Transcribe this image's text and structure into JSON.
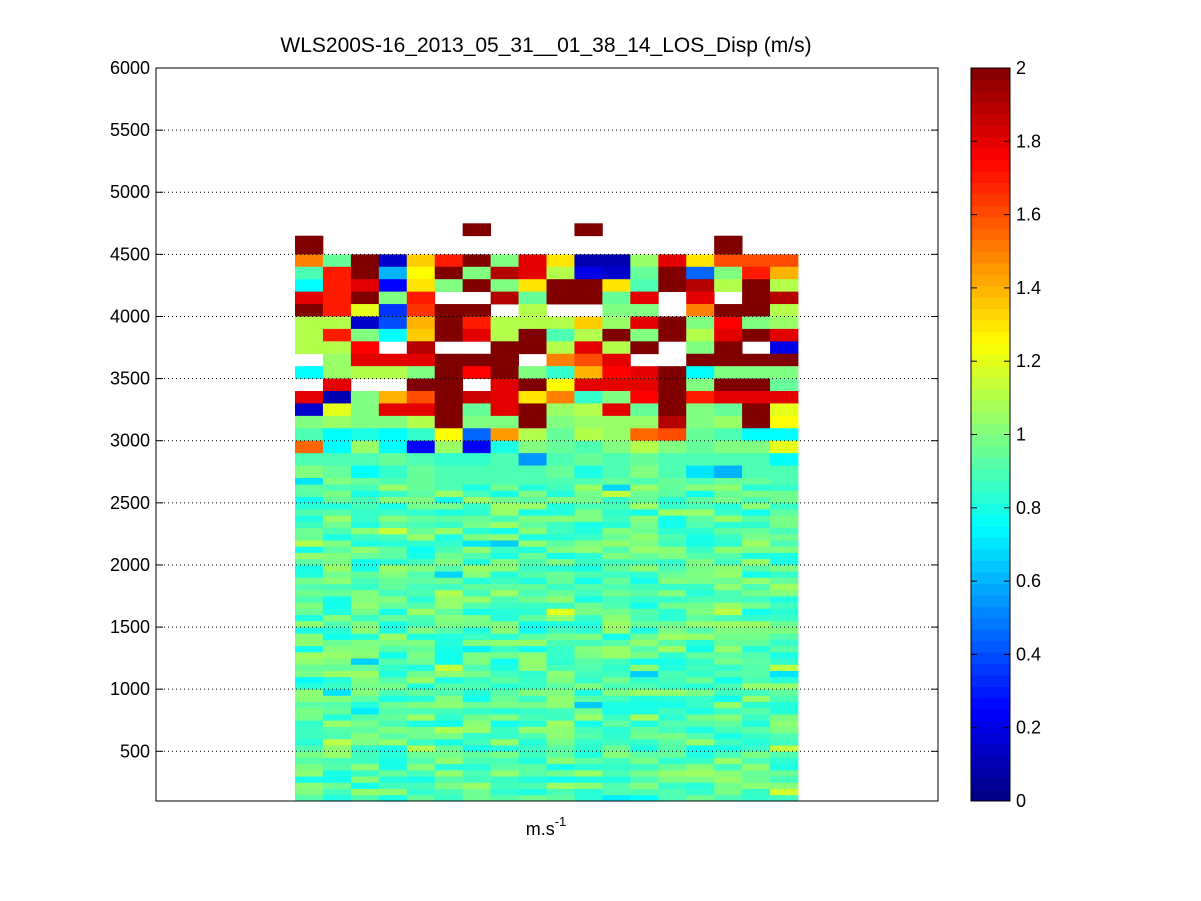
{
  "chart_data": {
    "type": "heatmap",
    "title": "WLS200S-16_2013_05_31__01_38_14_LOS_Disp (m/s)",
    "xlabel": "m.s",
    "xlabel_superscript": "-1",
    "ylabel": "",
    "ylim": [
      100,
      6000
    ],
    "yticks": [
      500,
      1000,
      1500,
      2000,
      2500,
      3000,
      3500,
      4000,
      4500,
      5000,
      5500,
      6000
    ],
    "grid": "horizontal dotted",
    "colormap": "jet",
    "colorbar": {
      "range": [
        0,
        2
      ],
      "ticks": [
        "0",
        "0.2",
        "0.4",
        "0.6",
        "0.8",
        "1",
        "1.2",
        "1.4",
        "1.6",
        "1.8",
        "2"
      ]
    },
    "num_columns": 18,
    "row_bin_m": 50,
    "dense_region": {
      "altitude_range": [
        100,
        2650
      ],
      "description": "values mostly between 0.8 and 1.2 (green/cyan)"
    },
    "sparse_region": {
      "altitude_range": [
        2650,
        4700
      ],
      "rows": [
        {
          "alt_bottom": 4650,
          "values": [
            null,
            null,
            null,
            null,
            null,
            null,
            2,
            null,
            null,
            null,
            2,
            null,
            null,
            null,
            null,
            null,
            null,
            null
          ]
        },
        {
          "alt_bottom": 4500,
          "values": [
            2,
            null,
            null,
            null,
            null,
            null,
            null,
            null,
            null,
            null,
            null,
            null,
            null,
            null,
            null,
            2,
            null,
            null
          ]
        },
        {
          "alt_bottom": 4400,
          "values": [
            1.5,
            0.95,
            2,
            0.15,
            1.35,
            1.7,
            2,
            1.0,
            1.8,
            1.3,
            0.1,
            0.1,
            1.05,
            1.8,
            1.3,
            1.6,
            1.6,
            1.6
          ]
        },
        {
          "alt_bottom": 4300,
          "values": [
            0.9,
            1.7,
            2,
            0.6,
            1.25,
            2,
            1.0,
            1.9,
            1.8,
            1.1,
            0.2,
            0.15,
            0.95,
            2,
            0.45,
            1.0,
            1.7,
            1.4
          ]
        },
        {
          "alt_bottom": 4200,
          "values": [
            0.75,
            1.7,
            1.8,
            0.25,
            1.3,
            1.0,
            2,
            1.0,
            1.3,
            2,
            2,
            1.3,
            0.9,
            2,
            1.9,
            1.1,
            2,
            1.1
          ]
        },
        {
          "alt_bottom": 4100,
          "values": [
            1.8,
            1.7,
            2,
            1.0,
            1.7,
            null,
            null,
            1.9,
            0.95,
            2,
            2,
            0.95,
            1.8,
            null,
            1.8,
            null,
            2,
            1.9
          ]
        },
        {
          "alt_bottom": 4000,
          "values": [
            2,
            1.7,
            1.2,
            0.35,
            1.65,
            2,
            2,
            null,
            1.1,
            null,
            null,
            1.0,
            1.0,
            null,
            1.5,
            2,
            2,
            1.1
          ]
        },
        {
          "alt_bottom": 3900,
          "values": [
            1.1,
            1.1,
            0.15,
            0.4,
            1.4,
            2,
            1.7,
            1.1,
            1.1,
            1.1,
            1.35,
            1.05,
            1.8,
            2,
            1.0,
            1.75,
            1.0,
            1.05
          ]
        },
        {
          "alt_bottom": 3800,
          "values": [
            1.1,
            1.7,
            1.0,
            0.75,
            1.35,
            2,
            1.8,
            1.1,
            2,
            0.9,
            1.1,
            2,
            1.0,
            2,
            1.1,
            1.8,
            2,
            1.8
          ]
        },
        {
          "alt_bottom": 3700,
          "values": [
            1.1,
            1.1,
            1.75,
            null,
            1.9,
            null,
            null,
            2,
            2,
            1.1,
            1.8,
            1.1,
            2,
            null,
            1.0,
            2,
            null,
            0.2
          ]
        },
        {
          "alt_bottom": 3600,
          "values": [
            null,
            1.05,
            1.8,
            1.8,
            1.8,
            2,
            2,
            2,
            null,
            1.5,
            1.6,
            1.8,
            null,
            null,
            2,
            2,
            2,
            2
          ]
        },
        {
          "alt_bottom": 3500,
          "values": [
            0.75,
            1.05,
            1.1,
            1.1,
            1.0,
            2,
            1.75,
            2,
            1.0,
            0.85,
            1.4,
            1.75,
            1.8,
            2,
            0.75,
            1.0,
            1.0,
            1.0
          ]
        },
        {
          "alt_bottom": 3400,
          "values": [
            null,
            1.8,
            null,
            null,
            2,
            2,
            null,
            1.8,
            2,
            1.25,
            1.8,
            1.8,
            1.8,
            2,
            1.0,
            2,
            2,
            0.95
          ]
        },
        {
          "alt_bottom": 3300,
          "values": [
            1.8,
            0.1,
            1.0,
            1.4,
            1.6,
            2,
            1.85,
            1.8,
            1.3,
            1.5,
            0.85,
            1.0,
            1.75,
            2,
            1.7,
            1.8,
            1.8,
            1.8
          ]
        },
        {
          "alt_bottom": 3200,
          "values": [
            0.15,
            1.2,
            1.0,
            1.8,
            1.8,
            2,
            0.95,
            1.8,
            2,
            1.05,
            1.1,
            1.8,
            0.95,
            2,
            1.0,
            0.95,
            2,
            1.2
          ]
        },
        {
          "alt_bottom": 3100,
          "values": [
            1.0,
            1.05,
            1.0,
            1.0,
            1.1,
            2,
            1.0,
            1.0,
            2,
            1.0,
            1.05,
            1.05,
            1.05,
            1.9,
            1.0,
            1.05,
            2,
            1.25
          ]
        },
        {
          "alt_bottom": 3000,
          "values": [
            0.9,
            0.75,
            0.8,
            0.75,
            0.85,
            1.25,
            0.45,
            1.45,
            1.1,
            0.95,
            1.1,
            1.05,
            1.55,
            1.6,
            0.95,
            0.9,
            0.75,
            0.75
          ]
        },
        {
          "alt_bottom": 2900,
          "values": [
            1.55,
            0.75,
            1.05,
            0.75,
            0.25,
            1.05,
            0.25,
            0.8,
            1.0,
            0.95,
            0.9,
            1.0,
            1.1,
            1.0,
            0.95,
            1.0,
            1.0,
            1.2
          ]
        },
        {
          "alt_bottom": 2800,
          "values": [
            0.9,
            0.9,
            0.9,
            0.95,
            0.9,
            0.85,
            0.85,
            0.9,
            0.55,
            0.9,
            0.95,
            0.9,
            0.95,
            0.9,
            0.9,
            0.9,
            0.9,
            0.75
          ]
        },
        {
          "alt_bottom": 2700,
          "values": [
            1.0,
            0.95,
            0.75,
            0.85,
            0.95,
            0.9,
            0.9,
            0.9,
            0.9,
            0.95,
            0.8,
            0.9,
            1.0,
            0.9,
            0.7,
            0.6,
            0.9,
            0.9
          ]
        },
        {
          "alt_bottom": 2650,
          "values": [
            0.7,
            1.0,
            0.95,
            0.9,
            0.95,
            0.9,
            0.9,
            0.9,
            0.9,
            0.9,
            0.9,
            0.95,
            0.9,
            0.95,
            0.9,
            0.95,
            0.95,
            0.9
          ]
        }
      ]
    }
  },
  "colors": {
    "axis": "#000000",
    "grid": "#000000",
    "background": "#ffffff"
  }
}
